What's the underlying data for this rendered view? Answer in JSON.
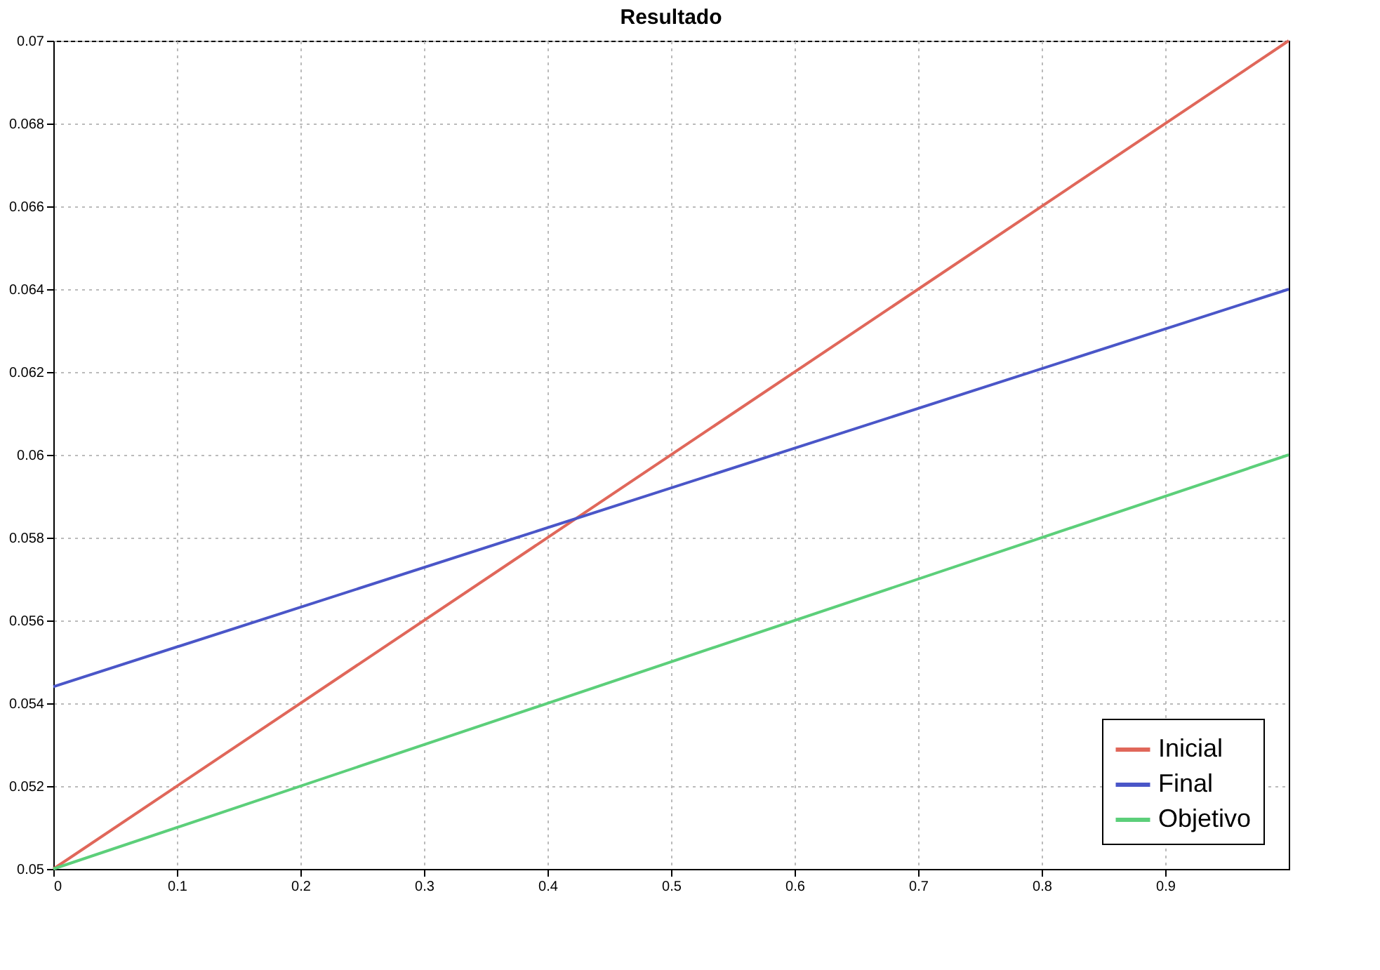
{
  "chart_data": {
    "type": "line",
    "title": "Resultado",
    "x": [
      0,
      1
    ],
    "series": [
      {
        "name": "Inicial",
        "color": "#e0675a",
        "values": [
          0.05,
          0.07
        ]
      },
      {
        "name": "Final",
        "color": "#4a56c8",
        "values": [
          0.0544,
          0.064
        ]
      },
      {
        "name": "Objetivo",
        "color": "#5ccf7a",
        "values": [
          0.05,
          0.06
        ]
      }
    ],
    "xlim": [
      0,
      1
    ],
    "xticks": [
      0,
      0.1,
      0.2,
      0.3,
      0.4,
      0.5,
      0.6,
      0.7,
      0.8,
      0.9
    ],
    "ylim": [
      0.05,
      0.07
    ],
    "yticks": [
      0.05,
      0.052,
      0.054,
      0.056,
      0.058,
      0.06,
      0.062,
      0.064,
      0.066,
      0.068,
      0.07
    ],
    "grid": true,
    "legend": "bottom right",
    "marker": "none",
    "line_style": "solid"
  }
}
